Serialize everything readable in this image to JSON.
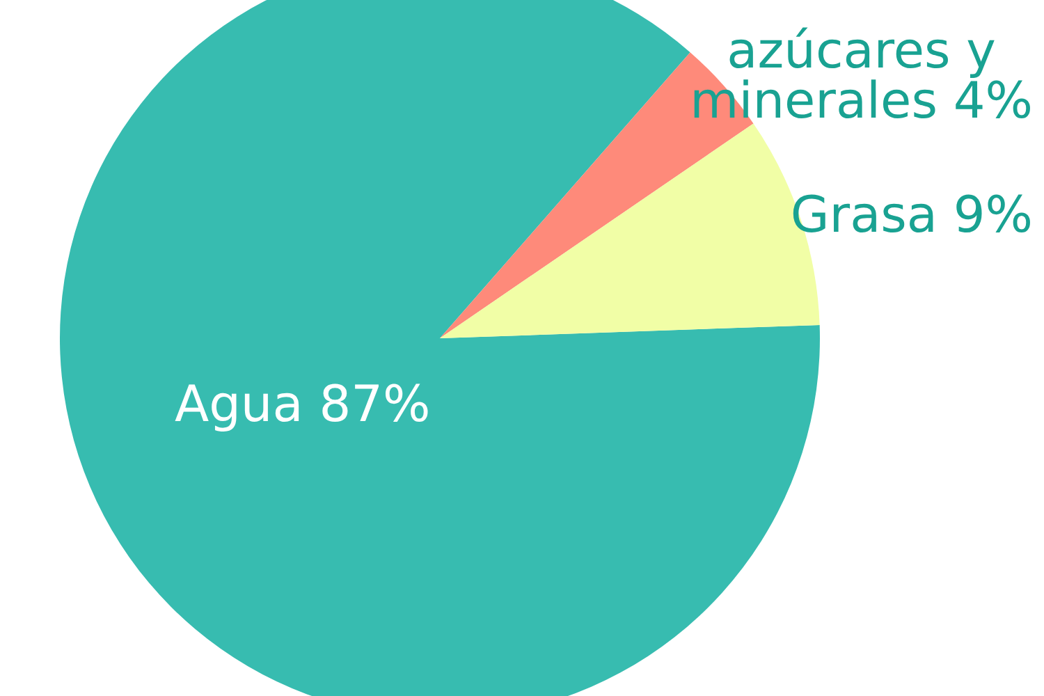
{
  "chart_data": {
    "type": "pie",
    "categories": [
      "Agua",
      "azúcares y minerales",
      "Grasa"
    ],
    "values": [
      87,
      4,
      9
    ],
    "value_labels": [
      "87%",
      "4%",
      "9%"
    ],
    "colors": [
      "#37bcb0",
      "#fe8a7a",
      "#f1fea6"
    ]
  }
}
